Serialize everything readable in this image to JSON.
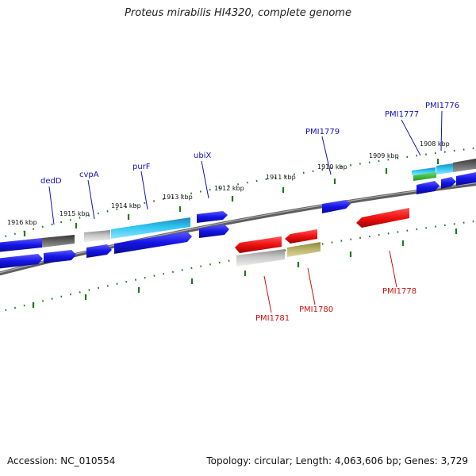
{
  "title": "Proteus mirabilis HI4320, complete genome",
  "footer": {
    "accession": "Accession: NC_010554",
    "stats": "Topology: circular; Length: 4,063,606 bp; Genes: 3,729"
  },
  "colors": {
    "backbone": "#777777",
    "tick": "#1a7a1a",
    "forward_label": "#1010c0",
    "reverse_label": "#cc1111",
    "blue": "#1414e6",
    "cyan": "#22bbee",
    "gray": "#bbbbbb",
    "darkgray": "#666666",
    "red": "#ee1111",
    "olive": "#bbb56a",
    "green": "#33bb33"
  },
  "kbp_labels": [
    "1916 kbp",
    "1915 kbp",
    "1914 kbp",
    "1913 kbp",
    "1912 kbp",
    "1911 kbp",
    "1910 kbp",
    "1909 kbp",
    "1908 kbp"
  ],
  "forward_genes": [
    "dedD",
    "cvpA",
    "purF",
    "ubiX",
    "PMI1779",
    "PMI1777",
    "PMI1776"
  ],
  "reverse_genes": [
    "PMI1781",
    "PMI1780",
    "PMI1778"
  ]
}
